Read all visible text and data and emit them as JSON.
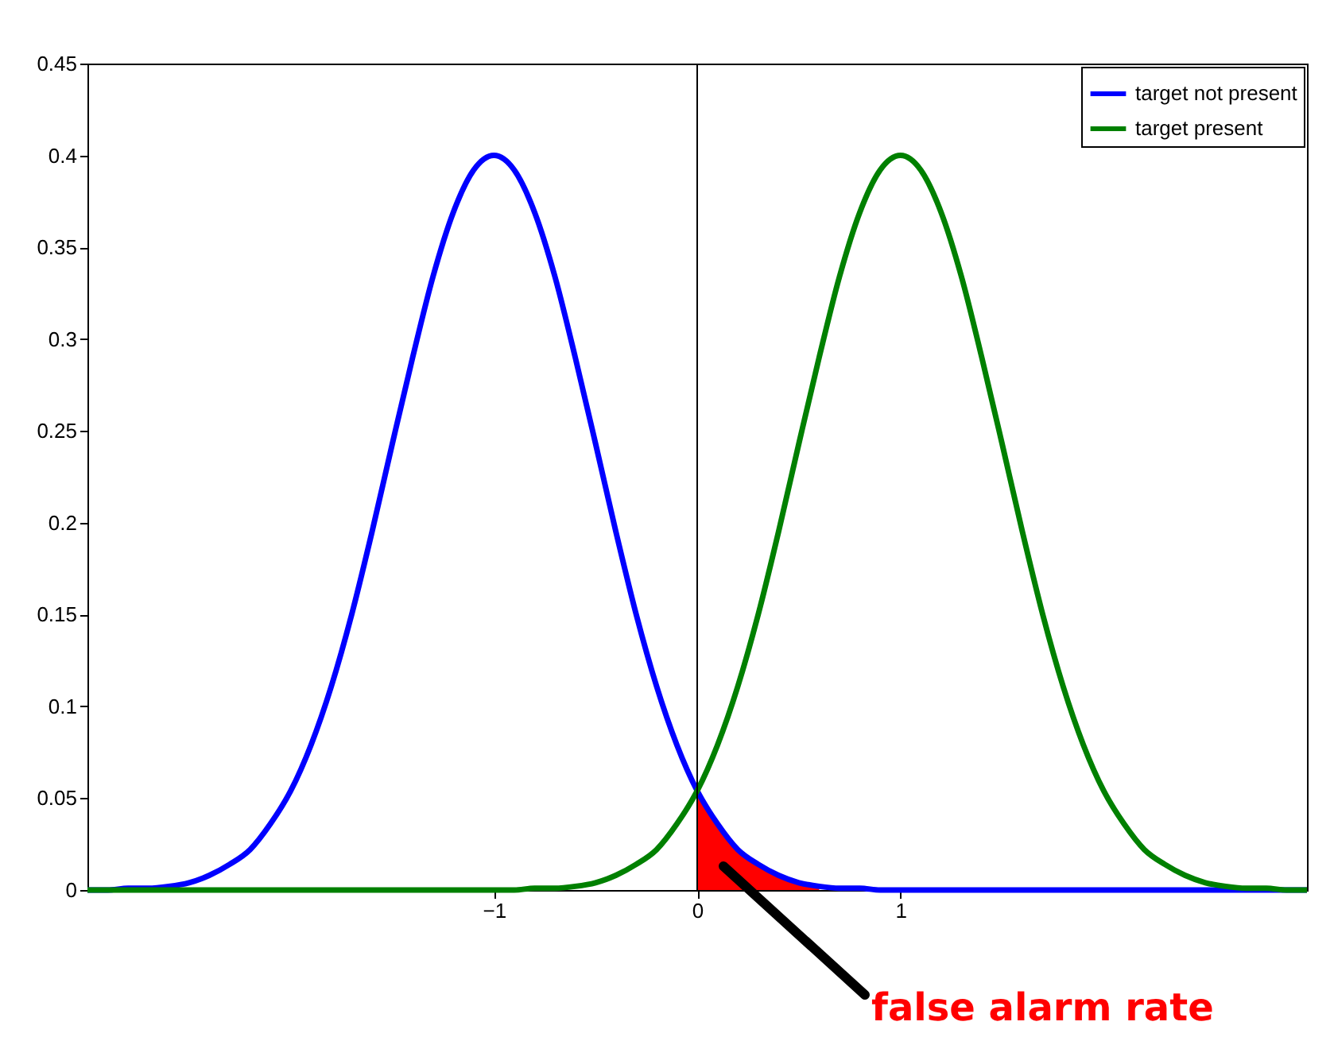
{
  "chart_data": {
    "type": "line",
    "x": [
      -3,
      -2.9,
      -2.8,
      -2.7,
      -2.6,
      -2.5,
      -2.4,
      -2.3,
      -2.2,
      -2.1,
      -2,
      -1.9,
      -1.8,
      -1.7,
      -1.6,
      -1.5,
      -1.4,
      -1.3,
      -1.2,
      -1.1,
      -1,
      -0.9,
      -0.8,
      -0.7,
      -0.6,
      -0.5,
      -0.4,
      -0.3,
      -0.2,
      -0.1,
      0,
      0.1,
      0.2,
      0.3,
      0.4,
      0.5,
      0.6,
      0.7,
      0.8,
      0.9,
      1,
      1.1,
      1.2,
      1.3,
      1.4,
      1.5,
      1.6,
      1.7,
      1.8,
      1.9,
      2,
      2.1,
      2.2,
      2.3,
      2.4,
      2.5,
      2.6,
      2.7,
      2.8,
      2.9,
      3
    ],
    "series": [
      {
        "name": "target not present",
        "color": "#0000ff",
        "values": [
          0,
          0,
          0.001,
          0.001,
          0.002,
          0.004,
          0.008,
          0.014,
          0.022,
          0.036,
          0.054,
          0.079,
          0.111,
          0.15,
          0.195,
          0.243,
          0.29,
          0.334,
          0.369,
          0.392,
          0.4,
          0.392,
          0.369,
          0.334,
          0.29,
          0.243,
          0.195,
          0.15,
          0.111,
          0.079,
          0.054,
          0.036,
          0.022,
          0.014,
          0.008,
          0.004,
          0.002,
          0.001,
          0.001,
          0,
          0,
          0,
          0,
          0,
          0,
          0,
          0,
          0,
          0,
          0,
          0,
          0,
          0,
          0,
          0,
          0,
          0,
          0,
          0,
          0,
          0
        ]
      },
      {
        "name": "target present",
        "color": "#008000",
        "values": [
          0,
          0,
          0,
          0,
          0,
          0,
          0,
          0,
          0,
          0,
          0,
          0,
          0,
          0,
          0,
          0,
          0,
          0,
          0,
          0,
          0,
          0,
          0.001,
          0.001,
          0.002,
          0.004,
          0.008,
          0.014,
          0.022,
          0.036,
          0.054,
          0.079,
          0.111,
          0.15,
          0.195,
          0.243,
          0.29,
          0.334,
          0.369,
          0.392,
          0.4,
          0.392,
          0.369,
          0.334,
          0.29,
          0.243,
          0.195,
          0.15,
          0.111,
          0.079,
          0.054,
          0.036,
          0.022,
          0.014,
          0.008,
          0.004,
          0.002,
          0.001,
          0.001,
          0,
          0
        ]
      },
      {
        "type": "area",
        "color": "#ff0000",
        "x": [
          0,
          0.1,
          0.2,
          0.3,
          0.4,
          0.5,
          0.6
        ],
        "values": [
          0.054,
          0.036,
          0.022,
          0.014,
          0.008,
          0.004,
          0.002
        ]
      }
    ],
    "xlim": [
      -3,
      3
    ],
    "xticks": [
      {
        "value": -1,
        "label": "−1"
      },
      0,
      1
    ],
    "ylim": [
      0,
      0.45
    ],
    "yticks": [
      0,
      0.05,
      0.1,
      0.15,
      0.2,
      0.25,
      0.3,
      0.35,
      0.4,
      0.45
    ],
    "ref_lines": [
      {
        "axis": "x",
        "value": 0,
        "color": "#000000"
      }
    ],
    "annotations": [
      "false alarm rate"
    ],
    "legend": "top right",
    "grid": false,
    "marker": "none",
    "line_style": "solid"
  }
}
